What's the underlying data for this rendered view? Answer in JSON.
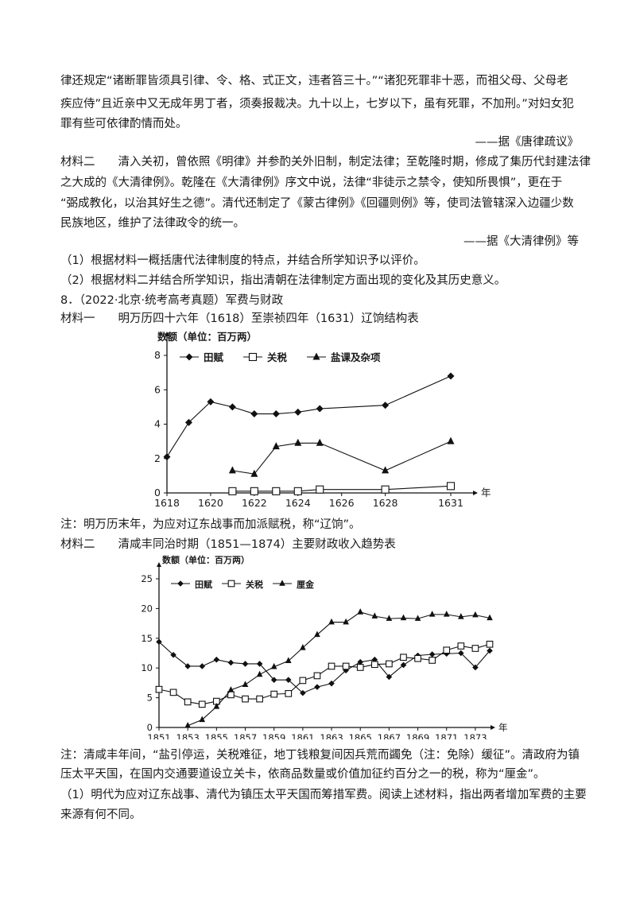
{
  "paragraph1": {
    "lines": [
      "律还规定“诸断罪皆须具引律、令、格、式正文，违者笞三十。”“诸犯死罪非十恶，而祖父母、父母老",
      "疾应侍”且近亲中又无成年男丁者，须奏报裁决。九十以上，七岁以下，虽有死罪，不加刑。”对妇女犯",
      "罪有些可依律酌情而处。"
    ],
    "source": "——据《唐律疏议》"
  },
  "material2": {
    "lines": [
      "材料二　　清入关初，曾依照《明律》并参酌关外旧制，制定法律；至乾隆时期，修成了集历代封建法律",
      "之大成的《大清律例》。乾隆在《大清律例》序文中说，法律“非徒示之禁令，使知所畏惧”，更在于",
      "“弼成教化，以治其好生之德”。清代还制定了《蒙古律例》《回疆则例》等，使司法管辖深入边疆少数",
      "民族地区，维护了法律政令的统一。"
    ],
    "source": "——据《大清律例》等"
  },
  "questions7": [
    "（1）根据材料一概括唐代法律制度的特点，并结合所学知识予以评价。",
    "（2）根据材料二并结合所学知识，指出清朝在法律制定方面出现的变化及其历史意义。"
  ],
  "q8_title": "8．（2022·北京·统考高考真题）军费与财政",
  "chart1_caption": "材料一　　明万历四十六年（1618）至崇祯四年（1631）辽饷结构表",
  "chart1_note": "注：明万历末年，为应对辽东战事而加派赋税，称“辽饷”。",
  "chart2_caption": "材料二　　清咸丰同治时期（1851—1874）主要财政收入趋势表",
  "chart2_note_lines": [
    "注：清咸丰年间，“盐引停运，关税难征，地丁钱粮复间因兵荒而蠲免（注：免除）缓征”。清政府为镇",
    "压太平天国，在国内交通要道设立关卡，依商品数量或价值加征约百分之一的税，称为“厘金”。"
  ],
  "q8_question_lines": [
    "（1）明代为应对辽东战事、清代为镇压太平天国而筹措军费。阅读上述材料，指出两者增加军费的主要",
    "来源有何不同。"
  ],
  "chart_data": [
    {
      "type": "line",
      "ylabel": "数额（单位：百万两）",
      "xlabel": "年",
      "ylim": [
        0,
        8
      ],
      "yticks": [
        "0",
        "2",
        "4",
        "6",
        "8"
      ],
      "xticks": [
        "1618",
        "1620",
        "1622",
        "1624",
        "1626",
        "1628",
        "1631"
      ],
      "legend": [
        "田赋",
        "关税",
        "盐课及杂项"
      ],
      "series": [
        {
          "name": "田赋",
          "marker": "diamond",
          "x": [
            1618,
            1619,
            1620,
            1621,
            1622,
            1623,
            1624,
            1625,
            1628,
            1631
          ],
          "values": [
            2.1,
            4.1,
            5.3,
            5.0,
            4.6,
            4.6,
            4.7,
            4.9,
            5.1,
            6.8
          ]
        },
        {
          "name": "关税",
          "marker": "square",
          "x": [
            1621,
            1622,
            1623,
            1624,
            1625,
            1628,
            1631
          ],
          "values": [
            0.1,
            0.1,
            0.1,
            0.1,
            0.2,
            0.2,
            0.4
          ]
        },
        {
          "name": "盐课及杂项",
          "marker": "triangle",
          "x": [
            1621,
            1622,
            1623,
            1624,
            1625,
            1628,
            1631
          ],
          "values": [
            1.3,
            1.1,
            2.7,
            2.9,
            2.9,
            1.3,
            3.0
          ]
        }
      ]
    },
    {
      "type": "line",
      "ylabel": "数额（单位：百万两）",
      "xlabel": "年",
      "ylim": [
        0,
        25
      ],
      "yticks": [
        "0",
        "5",
        "10",
        "15",
        "20",
        "25"
      ],
      "xticks": [
        "1851",
        "1853",
        "1855",
        "1857",
        "1859",
        "1861",
        "1863",
        "1865",
        "1867",
        "1869",
        "1871",
        "1873"
      ],
      "legend": [
        "田赋",
        "关税",
        "厘金"
      ],
      "series": [
        {
          "name": "田赋",
          "marker": "diamond",
          "x": [
            1851,
            1852,
            1853,
            1854,
            1855,
            1856,
            1857,
            1858,
            1859,
            1860,
            1861,
            1862,
            1863,
            1864,
            1865,
            1866,
            1867,
            1868,
            1869,
            1870,
            1871,
            1872,
            1873,
            1874
          ],
          "values": [
            14.4,
            12.2,
            10.3,
            10.3,
            11.4,
            10.9,
            10.7,
            10.7,
            8.0,
            8.0,
            5.8,
            6.8,
            7.4,
            9.6,
            11.0,
            11.4,
            8.5,
            10.5,
            12.1,
            12.3,
            12.4,
            12.5,
            10.1,
            12.9
          ]
        },
        {
          "name": "关税",
          "marker": "square",
          "x": [
            1851,
            1852,
            1853,
            1854,
            1855,
            1856,
            1857,
            1858,
            1859,
            1860,
            1861,
            1862,
            1863,
            1864,
            1865,
            1866,
            1867,
            1868,
            1869,
            1870,
            1871,
            1872,
            1873,
            1874
          ],
          "values": [
            6.4,
            5.9,
            4.3,
            3.9,
            4.4,
            5.5,
            4.8,
            4.8,
            5.6,
            5.7,
            7.9,
            8.7,
            10.3,
            10.3,
            10.1,
            10.6,
            10.7,
            11.8,
            11.6,
            11.3,
            13.0,
            13.7,
            13.3,
            14.0
          ]
        },
        {
          "name": "厘金",
          "marker": "triangle",
          "x": [
            1853,
            1854,
            1855,
            1856,
            1857,
            1858,
            1859,
            1860,
            1861,
            1862,
            1863,
            1864,
            1865,
            1866,
            1867,
            1868,
            1869,
            1870,
            1871,
            1872,
            1873,
            1874
          ],
          "values": [
            0.3,
            1.3,
            3.5,
            6.3,
            7.2,
            8.9,
            10.2,
            11.2,
            13.4,
            15.6,
            17.7,
            17.7,
            19.4,
            18.7,
            18.3,
            18.4,
            18.3,
            19.0,
            19.0,
            18.6,
            18.9,
            18.4
          ]
        }
      ]
    }
  ]
}
